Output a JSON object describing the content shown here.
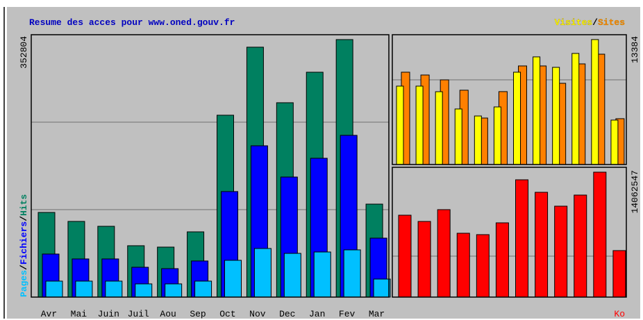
{
  "chart_data": [
    {
      "type": "bar",
      "title": "Resume des acces pour www.oned.gouv.fr",
      "categories": [
        "Avr",
        "Mai",
        "Juin",
        "Juil",
        "Aou",
        "Sep",
        "Oct",
        "Nov",
        "Dec",
        "Jan",
        "Fev",
        "Mar"
      ],
      "ylim": [
        0,
        352804
      ],
      "yticks": [
        352804
      ],
      "legend_separator": "/",
      "series": [
        {
          "name": "Pages",
          "color": "#00c0ff",
          "values": [
            21900,
            21900,
            21900,
            18100,
            18100,
            21900,
            50400,
            66600,
            59900,
            61800,
            64700,
            24700
          ]
        },
        {
          "name": "Fichiers",
          "color": "#0000ff",
          "values": [
            59000,
            52300,
            52300,
            40900,
            39000,
            49500,
            144600,
            207300,
            164500,
            190200,
            221600,
            80800
          ]
        },
        {
          "name": "Hits",
          "color": "#008060",
          "values": [
            116000,
            103700,
            97000,
            70400,
            68500,
            89400,
            249200,
            342400,
            266300,
            308100,
            352804,
            127400
          ]
        }
      ]
    },
    {
      "type": "bar",
      "ylim": [
        0,
        13384
      ],
      "yticks": [
        13384
      ],
      "legend_separator": "/",
      "series": [
        {
          "name": "Visites",
          "color": "#ffff00",
          "values": [
            8400,
            8400,
            7800,
            5950,
            5200,
            6170,
            9890,
            11530,
            10410,
            11900,
            13384,
            4760
          ]
        },
        {
          "name": "Sites",
          "color": "#ff8000",
          "values": [
            9890,
            9590,
            9070,
            7960,
            4980,
            7810,
            10560,
            10560,
            8700,
            10780,
            11820,
            4910
          ]
        }
      ]
    },
    {
      "type": "bar",
      "ylim": [
        0,
        14062547
      ],
      "yticks": [
        14062547
      ],
      "series": [
        {
          "name": "Ko",
          "color": "#ff0000",
          "values": [
            9218750,
            8515600,
            9843750,
            7187500,
            7031250,
            8359400,
            13203100,
            11796900,
            10234400,
            11484400,
            14062547,
            5234400
          ]
        }
      ]
    }
  ]
}
